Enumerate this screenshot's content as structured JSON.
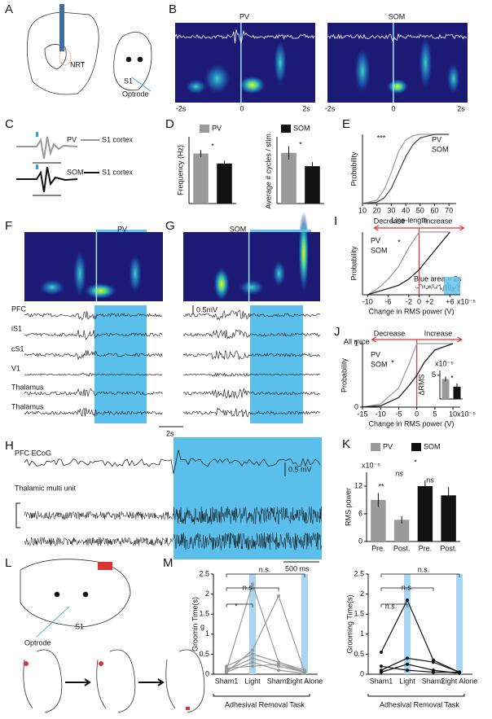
{
  "figure": {
    "panel_labels": [
      "A",
      "B",
      "C",
      "D",
      "E",
      "F",
      "G",
      "H",
      "I",
      "J",
      "K",
      "L",
      "M"
    ],
    "A": {
      "nucleus": "NRT",
      "area": "S1",
      "probe": "Optrode"
    },
    "B": {
      "titles": [
        "PV",
        "SOM"
      ],
      "time_labels": [
        "-2s",
        "0",
        "2s"
      ]
    },
    "C": {
      "cells": [
        "PV",
        "SOM"
      ],
      "region": "S1 cortex"
    },
    "FG": {
      "titles": [
        "PV",
        "SOM"
      ],
      "channels": [
        "PFC",
        "iS1",
        "cS1",
        "V1",
        "Thalamus",
        "Thalamus"
      ],
      "voltage_scale": "0.5mV",
      "time_scale": "2s"
    },
    "H": {
      "channels": [
        "PFC ECoG",
        "Thalamic multi unit"
      ],
      "voltage_scale": "0.5 mV",
      "time_scale": "500 ms"
    },
    "I": {
      "inset_note": "Blue area = 2s"
    },
    "J": {
      "note": "All mice"
    },
    "L": {
      "area": "S1",
      "probe": "Optrode"
    },
    "M": {
      "task": "Adhesival Removal Task",
      "stray": "g"
    }
  },
  "chart_data": [
    {
      "type": "bar",
      "ylabel": "Frequency (Hz)",
      "ylim": [
        0,
        10
      ],
      "annotations": [
        "*"
      ],
      "series": [
        {
          "name": "PV",
          "color": "#9a9a9a",
          "values": [
            7.5
          ],
          "errors": [
            0.5
          ]
        },
        {
          "name": "SOM",
          "color": "#111111",
          "values": [
            6
          ],
          "errors": [
            0.4
          ]
        }
      ]
    },
    {
      "type": "bar",
      "ylabel": "Average # cycles / stim.",
      "ylim": [
        0,
        5
      ],
      "annotations": [
        "*"
      ],
      "series": [
        {
          "color": "#9a9a9a",
          "values": [
            3.8
          ],
          "errors": [
            0.5
          ]
        },
        {
          "color": "#111111",
          "values": [
            2.8
          ],
          "errors": [
            0.3
          ]
        }
      ]
    },
    {
      "type": "line",
      "xlabel": "Line-length",
      "ylabel": "Probability",
      "xlim": [
        10,
        75
      ],
      "ylim": [
        0,
        1
      ],
      "xticks": [
        10,
        20,
        30,
        40,
        50,
        60,
        70
      ],
      "annotations": [
        "***"
      ],
      "x": [
        10,
        20,
        25,
        30,
        35,
        40,
        45,
        50,
        60,
        70
      ],
      "series": [
        {
          "name": "PV",
          "color": "#999999",
          "values": [
            0,
            0.05,
            0.2,
            0.45,
            0.75,
            0.92,
            0.98,
            1,
            1,
            1
          ]
        },
        {
          "name": "SOM",
          "color": "#444444",
          "values": [
            0,
            0.02,
            0.08,
            0.22,
            0.45,
            0.68,
            0.85,
            0.95,
            1,
            1
          ]
        }
      ]
    },
    {
      "type": "line",
      "xlabel": "Change in RMS power (V)",
      "ylabel": "Probability",
      "xlim": [
        -11,
        8
      ],
      "ylim": [
        0,
        1
      ],
      "xticks": [
        -10,
        -6,
        -2,
        0,
        {
          "value": 2,
          "label": "+2"
        },
        {
          "value": 6,
          "label": "+6"
        }
      ],
      "x_multiplier": "x10⁻⁵",
      "annotations": [
        "*",
        "Decrease",
        "Increase"
      ],
      "x": [
        -10,
        -8,
        -6,
        -4,
        -2,
        0,
        2,
        4,
        6
      ],
      "series": [
        {
          "name": "PV",
          "color": "#999999",
          "values": [
            0,
            0.1,
            0.25,
            0.45,
            0.75,
            1,
            1,
            1,
            1
          ]
        },
        {
          "name": "SOM",
          "color": "#111111",
          "values": [
            0,
            0.05,
            0.1,
            0.15,
            0.25,
            0.4,
            0.6,
            0.8,
            1
          ]
        }
      ]
    },
    {
      "type": "line",
      "xlabel": "Change in RMS power (V)",
      "ylabel": "Probability",
      "xlim": [
        -15,
        12
      ],
      "ylim": [
        0,
        1
      ],
      "xticks": [
        -15,
        -10,
        -5,
        0,
        5,
        10
      ],
      "yticks": [
        0,
        1
      ],
      "x_multiplier": "x10⁻⁵",
      "annotations": [
        "*",
        "Decrease",
        "Increase"
      ],
      "x": [
        -15,
        -10,
        -5,
        -2,
        0,
        2,
        5,
        10
      ],
      "series": [
        {
          "name": "PV",
          "color": "#999999",
          "values": [
            0,
            0.05,
            0.3,
            0.7,
            1,
            1,
            1,
            1
          ]
        },
        {
          "name": "SOM",
          "color": "#111111",
          "values": [
            0,
            0.02,
            0.15,
            0.35,
            0.5,
            0.7,
            0.9,
            1
          ]
        }
      ]
    },
    {
      "type": "bar",
      "ylabel": "ΔRMS",
      "ylim": [
        0,
        6
      ],
      "yticks": [
        5
      ],
      "y_multiplier": "x10⁻⁵",
      "annotations": [
        "*"
      ],
      "series": [
        {
          "color": "#9a9a9a",
          "values": [
            4.2
          ],
          "errors": [
            0.5
          ]
        },
        {
          "color": "#111111",
          "values": [
            2.6
          ],
          "errors": [
            0.7
          ]
        }
      ]
    },
    {
      "type": "bar",
      "ylabel": "RMS power",
      "ylim": [
        0,
        15
      ],
      "yticks": [
        0,
        6,
        12
      ],
      "y_multiplier": "x10⁻⁵",
      "categories": [
        "Pre.",
        "Post.",
        "Pre.",
        "Post."
      ],
      "annotations": [
        "**",
        "ns",
        "*",
        "ns"
      ],
      "series": [
        {
          "name": "PV",
          "color": "#9a9a9a",
          "values": [
            9,
            4.7,
            null,
            null
          ],
          "errors": [
            1.5,
            0.8,
            null,
            null
          ]
        },
        {
          "name": "SOM",
          "color": "#111111",
          "values": [
            null,
            null,
            12,
            10
          ],
          "errors": [
            null,
            null,
            1.2,
            1.8
          ]
        }
      ]
    },
    {
      "type": "line",
      "ylabel": "Groomin Time(s)",
      "ylim": [
        0,
        2.5
      ],
      "yticks": [
        0,
        0.5,
        1,
        1.5,
        2,
        2.5
      ],
      "categories": [
        "Sham1",
        "Light",
        "Sham2",
        "Light Alone"
      ],
      "annotations": [
        "*",
        "n.s.",
        "n.s."
      ],
      "series": [
        {
          "color": "#999999",
          "values": [
            0.1,
            2.25,
            0.3,
            0.05
          ]
        },
        {
          "color": "#999999",
          "values": [
            0.05,
            0.6,
            1.95,
            0.05
          ]
        },
        {
          "color": "#999999",
          "values": [
            0.2,
            0.5,
            0.3,
            0.1
          ]
        },
        {
          "color": "#999999",
          "values": [
            0.1,
            0.4,
            0.2,
            0.05
          ]
        },
        {
          "color": "#999999",
          "values": [
            0.05,
            0.3,
            0.1,
            0.02
          ]
        },
        {
          "color": "#999999",
          "values": [
            0.15,
            0.2,
            0.25,
            0.05
          ]
        }
      ]
    },
    {
      "type": "line",
      "ylabel": "Grooming Time(s)",
      "ylim": [
        0,
        2.5
      ],
      "yticks": [
        0,
        0.5,
        1,
        1.5,
        2,
        2.5
      ],
      "categories": [
        "Sham1",
        "Light",
        "Sham2",
        "Light Alone"
      ],
      "annotations": [
        "n.s.",
        "n.s.",
        "n.s."
      ],
      "series": [
        {
          "color": "#111111",
          "values": [
            0.55,
            1.85,
            0.35,
            0.05
          ]
        },
        {
          "color": "#111111",
          "values": [
            0.1,
            0.4,
            0.3,
            0.05
          ]
        },
        {
          "color": "#111111",
          "values": [
            0.05,
            0.25,
            0.1,
            0.02
          ]
        },
        {
          "color": "#111111",
          "values": [
            0.2,
            0.1,
            0.05,
            0.05
          ]
        }
      ]
    }
  ]
}
